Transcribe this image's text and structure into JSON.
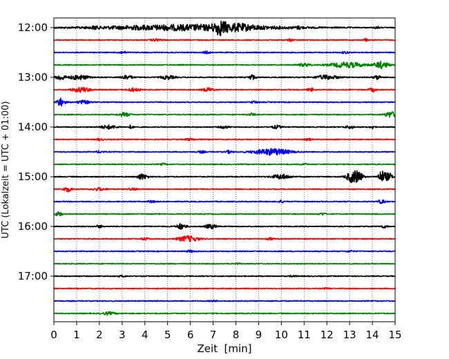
{
  "chart_data": {
    "type": "helicorder",
    "title": "",
    "xlabel": "Zeit  [min]",
    "ylabel": "UTC (Lokalzeit = UTC + 01:00)",
    "xlim": [
      0,
      15
    ],
    "x_ticks": [
      "0",
      "1",
      "2",
      "3",
      "4",
      "5",
      "6",
      "7",
      "8",
      "9",
      "10",
      "11",
      "12",
      "13",
      "14",
      "15"
    ],
    "y_tick_labels": [
      "12:00",
      "13:00",
      "14:00",
      "15:00",
      "16:00",
      "17:00"
    ],
    "grid": "vertical dotted at each minute",
    "line_interval_minutes": 15,
    "color_cycle": [
      "#000000",
      "#ff0000",
      "#0000ff",
      "#008000"
    ],
    "traces": [
      {
        "start": "12:00",
        "bursts": [
          [
            6.0,
            7.9,
            0.55
          ],
          [
            7.3,
            0.5,
            0.9
          ],
          [
            8.0,
            1.6,
            0.35
          ],
          [
            1.8,
            0.2,
            0.25
          ],
          [
            10.8,
            0.3,
            0.2
          ],
          [
            14.2,
            0.2,
            0.25
          ]
        ]
      },
      {
        "start": "12:15",
        "bursts": [
          [
            4.5,
            0.5,
            0.2
          ],
          [
            10.4,
            0.3,
            0.2
          ],
          [
            13.7,
            0.15,
            0.3
          ]
        ]
      },
      {
        "start": "12:30",
        "bursts": [
          [
            3.0,
            0.4,
            0.2
          ],
          [
            6.7,
            0.3,
            0.2
          ],
          [
            12.8,
            0.3,
            0.2
          ]
        ]
      },
      {
        "start": "12:45",
        "bursts": [
          [
            12.9,
            1.5,
            0.5
          ],
          [
            14.4,
            0.6,
            0.65
          ],
          [
            11.0,
            0.6,
            0.25
          ]
        ]
      },
      {
        "start": "13:00",
        "bursts": [
          [
            0.3,
            0.4,
            0.55
          ],
          [
            1.1,
            0.8,
            0.45
          ],
          [
            3.2,
            0.5,
            0.4
          ],
          [
            5.0,
            0.6,
            0.35
          ],
          [
            8.7,
            0.3,
            0.5
          ],
          [
            12.0,
            1.0,
            0.4
          ],
          [
            14.2,
            0.3,
            0.4
          ]
        ]
      },
      {
        "start": "13:15",
        "bursts": [
          [
            1.2,
            0.8,
            0.45
          ],
          [
            3.5,
            0.5,
            0.35
          ],
          [
            6.8,
            0.5,
            0.35
          ],
          [
            11.3,
            0.3,
            0.3
          ],
          [
            14.0,
            0.3,
            0.35
          ]
        ]
      },
      {
        "start": "13:30",
        "bursts": [
          [
            0.3,
            0.35,
            0.8
          ],
          [
            1.3,
            0.6,
            0.3
          ],
          [
            8.8,
            0.3,
            0.2
          ]
        ]
      },
      {
        "start": "13:45",
        "bursts": [
          [
            3.1,
            0.5,
            0.35
          ],
          [
            8.7,
            0.3,
            0.25
          ],
          [
            14.8,
            0.5,
            0.55
          ]
        ]
      },
      {
        "start": "14:00",
        "bursts": [
          [
            2.4,
            0.7,
            0.35
          ],
          [
            3.4,
            0.15,
            0.5
          ],
          [
            7.5,
            0.4,
            0.25
          ],
          [
            9.8,
            0.4,
            0.3
          ],
          [
            13.0,
            0.4,
            0.25
          ],
          [
            14.0,
            0.2,
            0.3
          ]
        ]
      },
      {
        "start": "14:15",
        "bursts": [
          [
            2.0,
            0.3,
            0.2
          ],
          [
            6.0,
            0.4,
            0.2
          ],
          [
            11.2,
            0.3,
            0.2
          ]
        ]
      },
      {
        "start": "14:30",
        "bursts": [
          [
            9.6,
            1.6,
            0.6
          ],
          [
            2.0,
            0.3,
            0.2
          ],
          [
            6.5,
            0.3,
            0.2
          ],
          [
            7.7,
            0.3,
            0.25
          ]
        ]
      },
      {
        "start": "14:45",
        "bursts": [
          [
            4.8,
            0.3,
            0.15
          ],
          [
            11.0,
            0.3,
            0.15
          ]
        ]
      },
      {
        "start": "15:00",
        "bursts": [
          [
            3.8,
            0.3,
            0.4
          ],
          [
            4.0,
            0.4,
            0.3
          ],
          [
            10.0,
            0.8,
            0.45
          ],
          [
            13.1,
            0.5,
            1.0
          ],
          [
            13.4,
            0.4,
            0.8
          ],
          [
            14.4,
            0.3,
            1.0
          ],
          [
            14.7,
            0.4,
            0.7
          ]
        ]
      },
      {
        "start": "15:15",
        "bursts": [
          [
            0.6,
            0.4,
            0.45
          ],
          [
            2.0,
            0.6,
            0.25
          ],
          [
            3.5,
            0.4,
            0.25
          ]
        ]
      },
      {
        "start": "15:30",
        "bursts": [
          [
            4.3,
            0.3,
            0.2
          ],
          [
            10.0,
            0.3,
            0.2
          ],
          [
            14.4,
            0.3,
            0.35
          ]
        ]
      },
      {
        "start": "15:45",
        "bursts": [
          [
            0.2,
            0.3,
            0.4
          ],
          [
            11.8,
            0.3,
            0.2
          ]
        ]
      },
      {
        "start": "16:00",
        "bursts": [
          [
            5.6,
            0.4,
            0.55
          ],
          [
            6.9,
            0.5,
            0.4
          ],
          [
            2.0,
            0.3,
            0.25
          ],
          [
            14.5,
            0.3,
            0.25
          ]
        ]
      },
      {
        "start": "16:15",
        "bursts": [
          [
            5.9,
            0.9,
            0.55
          ],
          [
            4.0,
            0.3,
            0.25
          ],
          [
            9.5,
            0.3,
            0.2
          ]
        ]
      },
      {
        "start": "16:30",
        "bursts": [
          [
            6.0,
            0.3,
            0.2
          ],
          [
            13.0,
            0.3,
            0.15
          ]
        ]
      },
      {
        "start": "16:45",
        "bursts": [
          [
            8.0,
            0.3,
            0.15
          ]
        ]
      },
      {
        "start": "17:00",
        "bursts": [
          [
            10.5,
            0.3,
            0.15
          ],
          [
            3.0,
            0.3,
            0.15
          ]
        ]
      },
      {
        "start": "17:15",
        "bursts": [
          [
            12.0,
            0.3,
            0.12
          ]
        ]
      },
      {
        "start": "17:30",
        "bursts": [
          [
            7.0,
            0.3,
            0.12
          ]
        ]
      },
      {
        "start": "17:45",
        "bursts": [
          [
            2.4,
            0.6,
            0.25
          ]
        ]
      }
    ]
  }
}
